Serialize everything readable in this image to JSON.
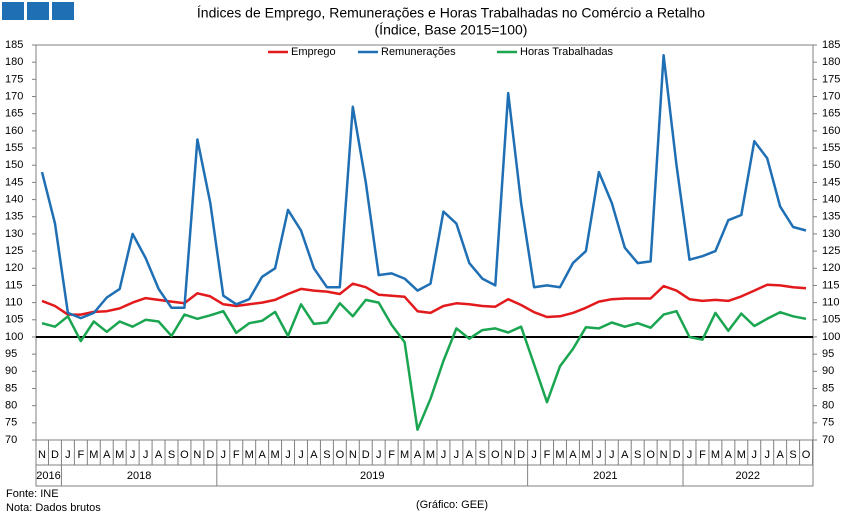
{
  "chart_data": {
    "type": "line",
    "title": "Índices de Emprego, Remunerações e Horas Trabalhadas no Comércio a Retalho",
    "subtitle": "(Índice, Base 2015=100)",
    "categories": [
      "N",
      "D",
      "J",
      "F",
      "M",
      "A",
      "M",
      "J",
      "J",
      "A",
      "S",
      "O",
      "N",
      "D",
      "J",
      "F",
      "M",
      "A",
      "M",
      "J",
      "J",
      "A",
      "S",
      "O",
      "N",
      "D",
      "J",
      "F",
      "M",
      "A",
      "M",
      "J",
      "J",
      "A",
      "S",
      "O",
      "N",
      "D",
      "J",
      "F",
      "M",
      "A",
      "M",
      "J",
      "J",
      "A",
      "S",
      "O",
      "N",
      "D",
      "J",
      "F",
      "M",
      "A",
      "M",
      "J",
      "J",
      "A",
      "S",
      "O"
    ],
    "x_groups": [
      "2016",
      "2018",
      "2019",
      "2021",
      "2022"
    ],
    "series": [
      {
        "name": "Emprego",
        "color": "#e31a1c",
        "values": [
          110.5,
          109,
          106.5,
          106.5,
          107.3,
          107.5,
          108.3,
          110,
          111.3,
          110.8,
          110.3,
          109.8,
          112.7,
          111.8,
          109.5,
          109,
          109.5,
          110,
          110.8,
          112.5,
          114,
          113.5,
          113.2,
          112.5,
          115.5,
          114.5,
          112.3,
          112,
          111.7,
          107.5,
          107,
          109,
          109.8,
          109.5,
          109,
          108.8,
          111,
          109.3,
          107.2,
          105.8,
          106,
          107,
          108.5,
          110.3,
          111,
          111.2,
          111.2,
          111.2,
          114.8,
          113.5,
          111,
          110.5,
          110.8,
          110.5,
          111.8,
          113.5,
          115.2,
          115,
          114.5,
          114.2
        ]
      },
      {
        "name": "Remunerações",
        "color": "#1f6fb4",
        "values": [
          148,
          133,
          107,
          105.5,
          107,
          111.5,
          114,
          130,
          123,
          114,
          108.5,
          108.5,
          157.5,
          139,
          112,
          109.5,
          111,
          117.5,
          120,
          137,
          131,
          120,
          114.5,
          114.5,
          167,
          145,
          118,
          118.5,
          117,
          113.5,
          115.5,
          136.5,
          133,
          121.5,
          117,
          115,
          171,
          139,
          114.5,
          115,
          114.5,
          121.5,
          125,
          148,
          139,
          126,
          121.5,
          122,
          182,
          150,
          122.5,
          123.5,
          125,
          134,
          135.5,
          157,
          152,
          138,
          132,
          131
        ]
      },
      {
        "name": "Horas Trabalhadas",
        "color": "#1aa550",
        "values": [
          104,
          103,
          106,
          98.8,
          104.5,
          101.5,
          104.5,
          103,
          105,
          104.5,
          100.3,
          106.5,
          105.3,
          106.3,
          107.5,
          101.2,
          104,
          104.7,
          107.3,
          100.3,
          109.5,
          103.8,
          104.2,
          109.8,
          106,
          110.8,
          110,
          103.5,
          98.5,
          73,
          82,
          93,
          102.5,
          99.5,
          102,
          102.5,
          101.3,
          103,
          92,
          81,
          91.5,
          96.5,
          102.8,
          102.5,
          104.2,
          103,
          104,
          102.7,
          106.5,
          107.5,
          100,
          99.2,
          107,
          101.8,
          106.8,
          103.2,
          105.3,
          107.2,
          106,
          105.3
        ]
      }
    ],
    "hline": 100,
    "ylim": [
      70,
      185
    ],
    "yticks": [
      70,
      75,
      80,
      85,
      90,
      95,
      100,
      105,
      110,
      115,
      120,
      125,
      130,
      135,
      140,
      145,
      150,
      155,
      160,
      165,
      170,
      175,
      180,
      185
    ],
    "y2lim": [
      70,
      185
    ],
    "y2ticks": [
      70,
      75,
      80,
      85,
      90,
      95,
      100,
      105,
      110,
      115,
      120,
      125,
      130,
      135,
      140,
      145,
      150,
      155,
      160,
      165,
      170,
      175,
      180,
      185
    ],
    "legend": "top",
    "notes": [
      "Fonte: INE",
      "Nota: Dados brutos"
    ],
    "credit": "(Gráfico: GEE)"
  }
}
